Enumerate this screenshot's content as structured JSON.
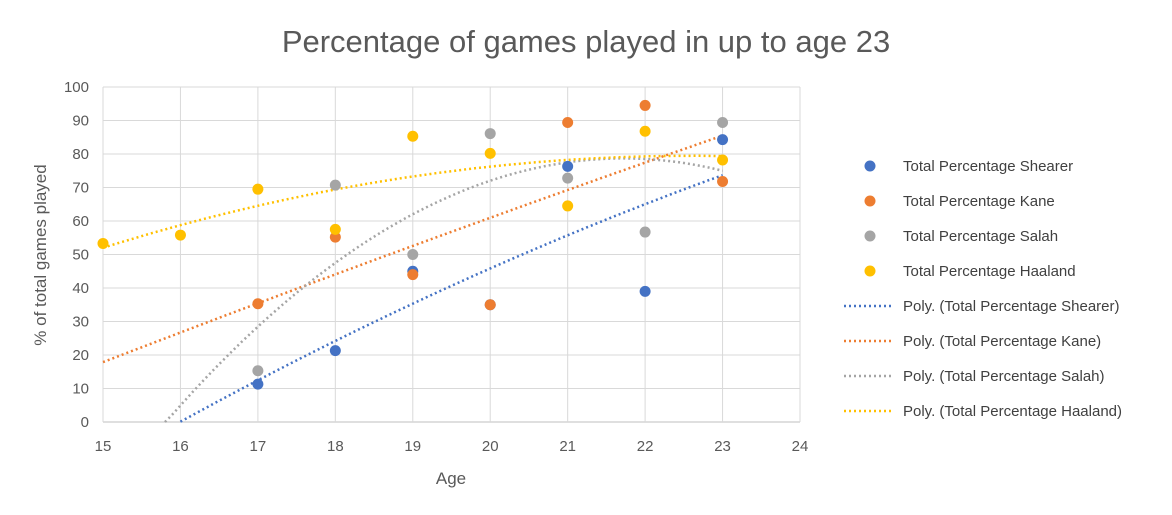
{
  "chart_data": {
    "type": "scatter",
    "title": "Percentage of games played in up to age 23",
    "xlabel": "Age",
    "ylabel": "% of total games played",
    "xlim": [
      15,
      24
    ],
    "ylim": [
      0,
      100
    ],
    "xticks": [
      15,
      16,
      17,
      18,
      19,
      20,
      21,
      22,
      23,
      24
    ],
    "yticks": [
      0,
      10,
      20,
      30,
      40,
      50,
      60,
      70,
      80,
      90,
      100
    ],
    "grid": true,
    "legend_position": "right",
    "series": [
      {
        "name": "Total Percentage Shearer",
        "color": "#4472c4",
        "points": [
          [
            17,
            11.3
          ],
          [
            18,
            21.3
          ],
          [
            19,
            45
          ],
          [
            20,
            35
          ],
          [
            21,
            76.3
          ],
          [
            22,
            39
          ],
          [
            23,
            84.3
          ]
        ]
      },
      {
        "name": "Total Percentage Kane",
        "color": "#ed7d31",
        "points": [
          [
            17,
            35.3
          ],
          [
            18,
            55.2
          ],
          [
            19,
            44
          ],
          [
            20,
            35
          ],
          [
            21,
            89.4
          ],
          [
            22,
            94.5
          ],
          [
            23,
            71.8
          ]
        ]
      },
      {
        "name": "Total Percentage Salah",
        "color": "#a5a5a5",
        "points": [
          [
            17,
            15.3
          ],
          [
            18,
            70.7
          ],
          [
            19,
            50
          ],
          [
            20,
            86.1
          ],
          [
            21,
            72.8
          ],
          [
            22,
            56.7
          ],
          [
            23,
            89.4
          ]
        ]
      },
      {
        "name": "Total Percentage Haaland",
        "color": "#ffc000",
        "points": [
          [
            15,
            53.3
          ],
          [
            16,
            55.8
          ],
          [
            17,
            69.5
          ],
          [
            18,
            57.5
          ],
          [
            19,
            85.3
          ],
          [
            20,
            80.2
          ],
          [
            21,
            64.5
          ],
          [
            22,
            86.8
          ],
          [
            23,
            78.2
          ]
        ]
      }
    ],
    "trendlines": [
      {
        "name": "Poly. (Total Percentage Shearer)",
        "color": "#4472c4",
        "x_range": [
          16,
          23
        ]
      },
      {
        "name": "Poly. (Total Percentage Kane)",
        "color": "#ed7d31",
        "x_range": [
          15,
          23
        ]
      },
      {
        "name": "Poly. (Total Percentage Salah)",
        "color": "#a5a5a5",
        "x_range": [
          15.8,
          23
        ]
      },
      {
        "name": "Poly. (Total Percentage Haaland)",
        "color": "#ffc000",
        "x_range": [
          15,
          23
        ]
      }
    ]
  }
}
